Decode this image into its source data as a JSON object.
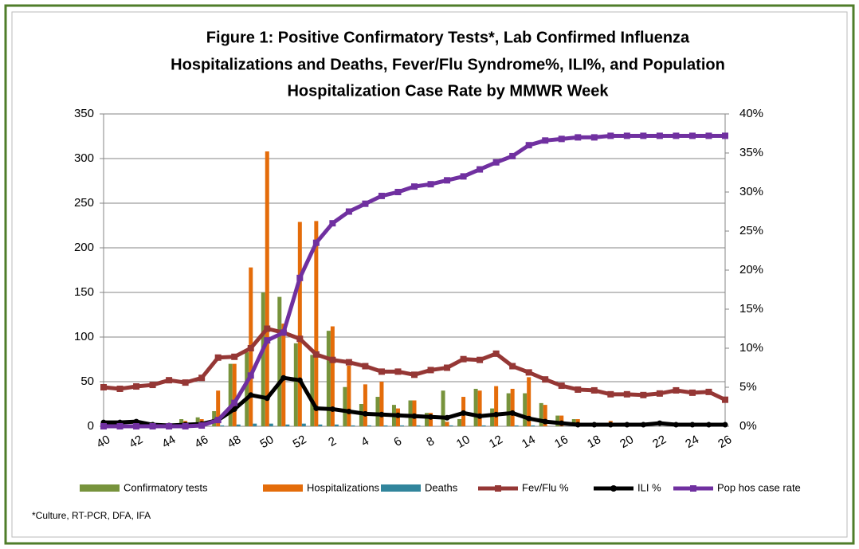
{
  "chart_data": {
    "type": "combo",
    "title": [
      "Figure 1: Positive Confirmatory Tests*, Lab Confirmed Influenza",
      "Hospitalizations  and Deaths, Fever/Flu Syndrome%, ILI%,  and Population",
      "Hospitalization  Case Rate by MMWR Week"
    ],
    "footnote": "*Culture, RT-PCR, DFA, IFA",
    "categories": [
      "40",
      null,
      "42",
      null,
      "44",
      null,
      "46",
      null,
      "48",
      null,
      "50",
      null,
      "52",
      null,
      "2",
      null,
      "4",
      null,
      "6",
      null,
      "8",
      null,
      "10",
      null,
      "12",
      null,
      "14",
      null,
      "16",
      null,
      "18",
      null,
      "20",
      null,
      "22",
      null,
      "24",
      null,
      "26"
    ],
    "ylim": [
      0,
      350
    ],
    "yticks": [
      0,
      50,
      100,
      150,
      200,
      250,
      300,
      350
    ],
    "y2lim": [
      0,
      40
    ],
    "y2ticks": [
      {
        "value": 0,
        "label": "0%"
      },
      {
        "value": 5,
        "label": "5%"
      },
      {
        "value": 10,
        "label": "10%"
      },
      {
        "value": 15,
        "label": "15%"
      },
      {
        "value": 20,
        "label": "20%"
      },
      {
        "value": 25,
        "label": "25%"
      },
      {
        "value": 30,
        "label": "30%"
      },
      {
        "value": 35,
        "label": "35%"
      },
      {
        "value": 40,
        "label": "40%"
      }
    ],
    "grid": true,
    "series": [
      {
        "name": "Confirmatory tests",
        "type": "bar",
        "color": "#77933c",
        "values": [
          0,
          0,
          0,
          0,
          2,
          8,
          10,
          17,
          70,
          83,
          150,
          145,
          93,
          80,
          107,
          44,
          25,
          33,
          24,
          29,
          15,
          40,
          8,
          42,
          20,
          37,
          37,
          26,
          12,
          8,
          2,
          2,
          2,
          0,
          0,
          0,
          0,
          0,
          0
        ]
      },
      {
        "name": "Hospitalizations",
        "type": "bar",
        "color": "#e46c0a",
        "values": [
          0,
          0,
          0,
          0,
          3,
          6,
          8,
          40,
          70,
          178,
          308,
          115,
          229,
          230,
          112,
          68,
          47,
          50,
          20,
          29,
          15,
          5,
          33,
          40,
          45,
          42,
          55,
          24,
          12,
          8,
          2,
          6,
          2,
          0,
          0,
          0,
          0,
          0,
          0
        ]
      },
      {
        "name": "Deaths",
        "type": "bar",
        "color": "#31859c",
        "values": [
          0,
          0,
          0,
          0,
          0,
          0,
          0,
          1,
          2,
          3,
          3,
          2,
          3,
          2,
          2,
          1,
          1,
          1,
          1,
          1,
          0,
          1,
          0,
          1,
          0,
          1,
          1,
          0,
          0,
          0,
          0,
          0,
          0,
          0,
          0,
          0,
          0,
          0,
          0
        ]
      },
      {
        "name": "Fev/Flu %",
        "type": "line",
        "axis": "y2",
        "color": "#953735",
        "marker": "square",
        "values": [
          5.0,
          4.8,
          5.1,
          5.3,
          5.9,
          5.6,
          6.2,
          8.8,
          8.9,
          10.0,
          12.5,
          12.0,
          11.2,
          9.2,
          8.5,
          8.2,
          7.7,
          7.0,
          7.0,
          6.6,
          7.2,
          7.5,
          8.6,
          8.5,
          9.3,
          7.7,
          6.9,
          6.0,
          5.2,
          4.7,
          4.6,
          4.1,
          4.1,
          4.0,
          4.2,
          4.6,
          4.3,
          4.4,
          3.4
        ]
      },
      {
        "name": "ILI %",
        "type": "line",
        "axis": "y2",
        "color": "#000000",
        "marker": "circle",
        "values": [
          0.5,
          0.5,
          0.6,
          0.2,
          0.1,
          0.2,
          0.3,
          0.8,
          2.2,
          4.0,
          3.6,
          6.2,
          5.9,
          2.3,
          2.2,
          1.9,
          1.6,
          1.5,
          1.4,
          1.3,
          1.2,
          1.1,
          1.7,
          1.3,
          1.5,
          1.7,
          1.0,
          0.6,
          0.4,
          0.2,
          0.2,
          0.2,
          0.2,
          0.2,
          0.4,
          0.2,
          0.2,
          0.2,
          0.2
        ]
      },
      {
        "name": "Pop hos case rate",
        "type": "line",
        "axis": "y2",
        "color": "#7030a0",
        "marker": "square",
        "values": [
          0,
          0,
          0,
          0,
          0,
          0,
          0.1,
          0.8,
          3.0,
          6.5,
          11.0,
          12.0,
          19.0,
          23.5,
          26.0,
          27.5,
          28.5,
          29.5,
          30.0,
          30.7,
          31.0,
          31.5,
          32.0,
          32.9,
          33.8,
          34.6,
          36.0,
          36.6,
          36.8,
          37.0,
          37.0,
          37.2,
          37.2,
          37.2,
          37.2,
          37.2,
          37.2,
          37.2,
          37.2
        ]
      }
    ]
  }
}
